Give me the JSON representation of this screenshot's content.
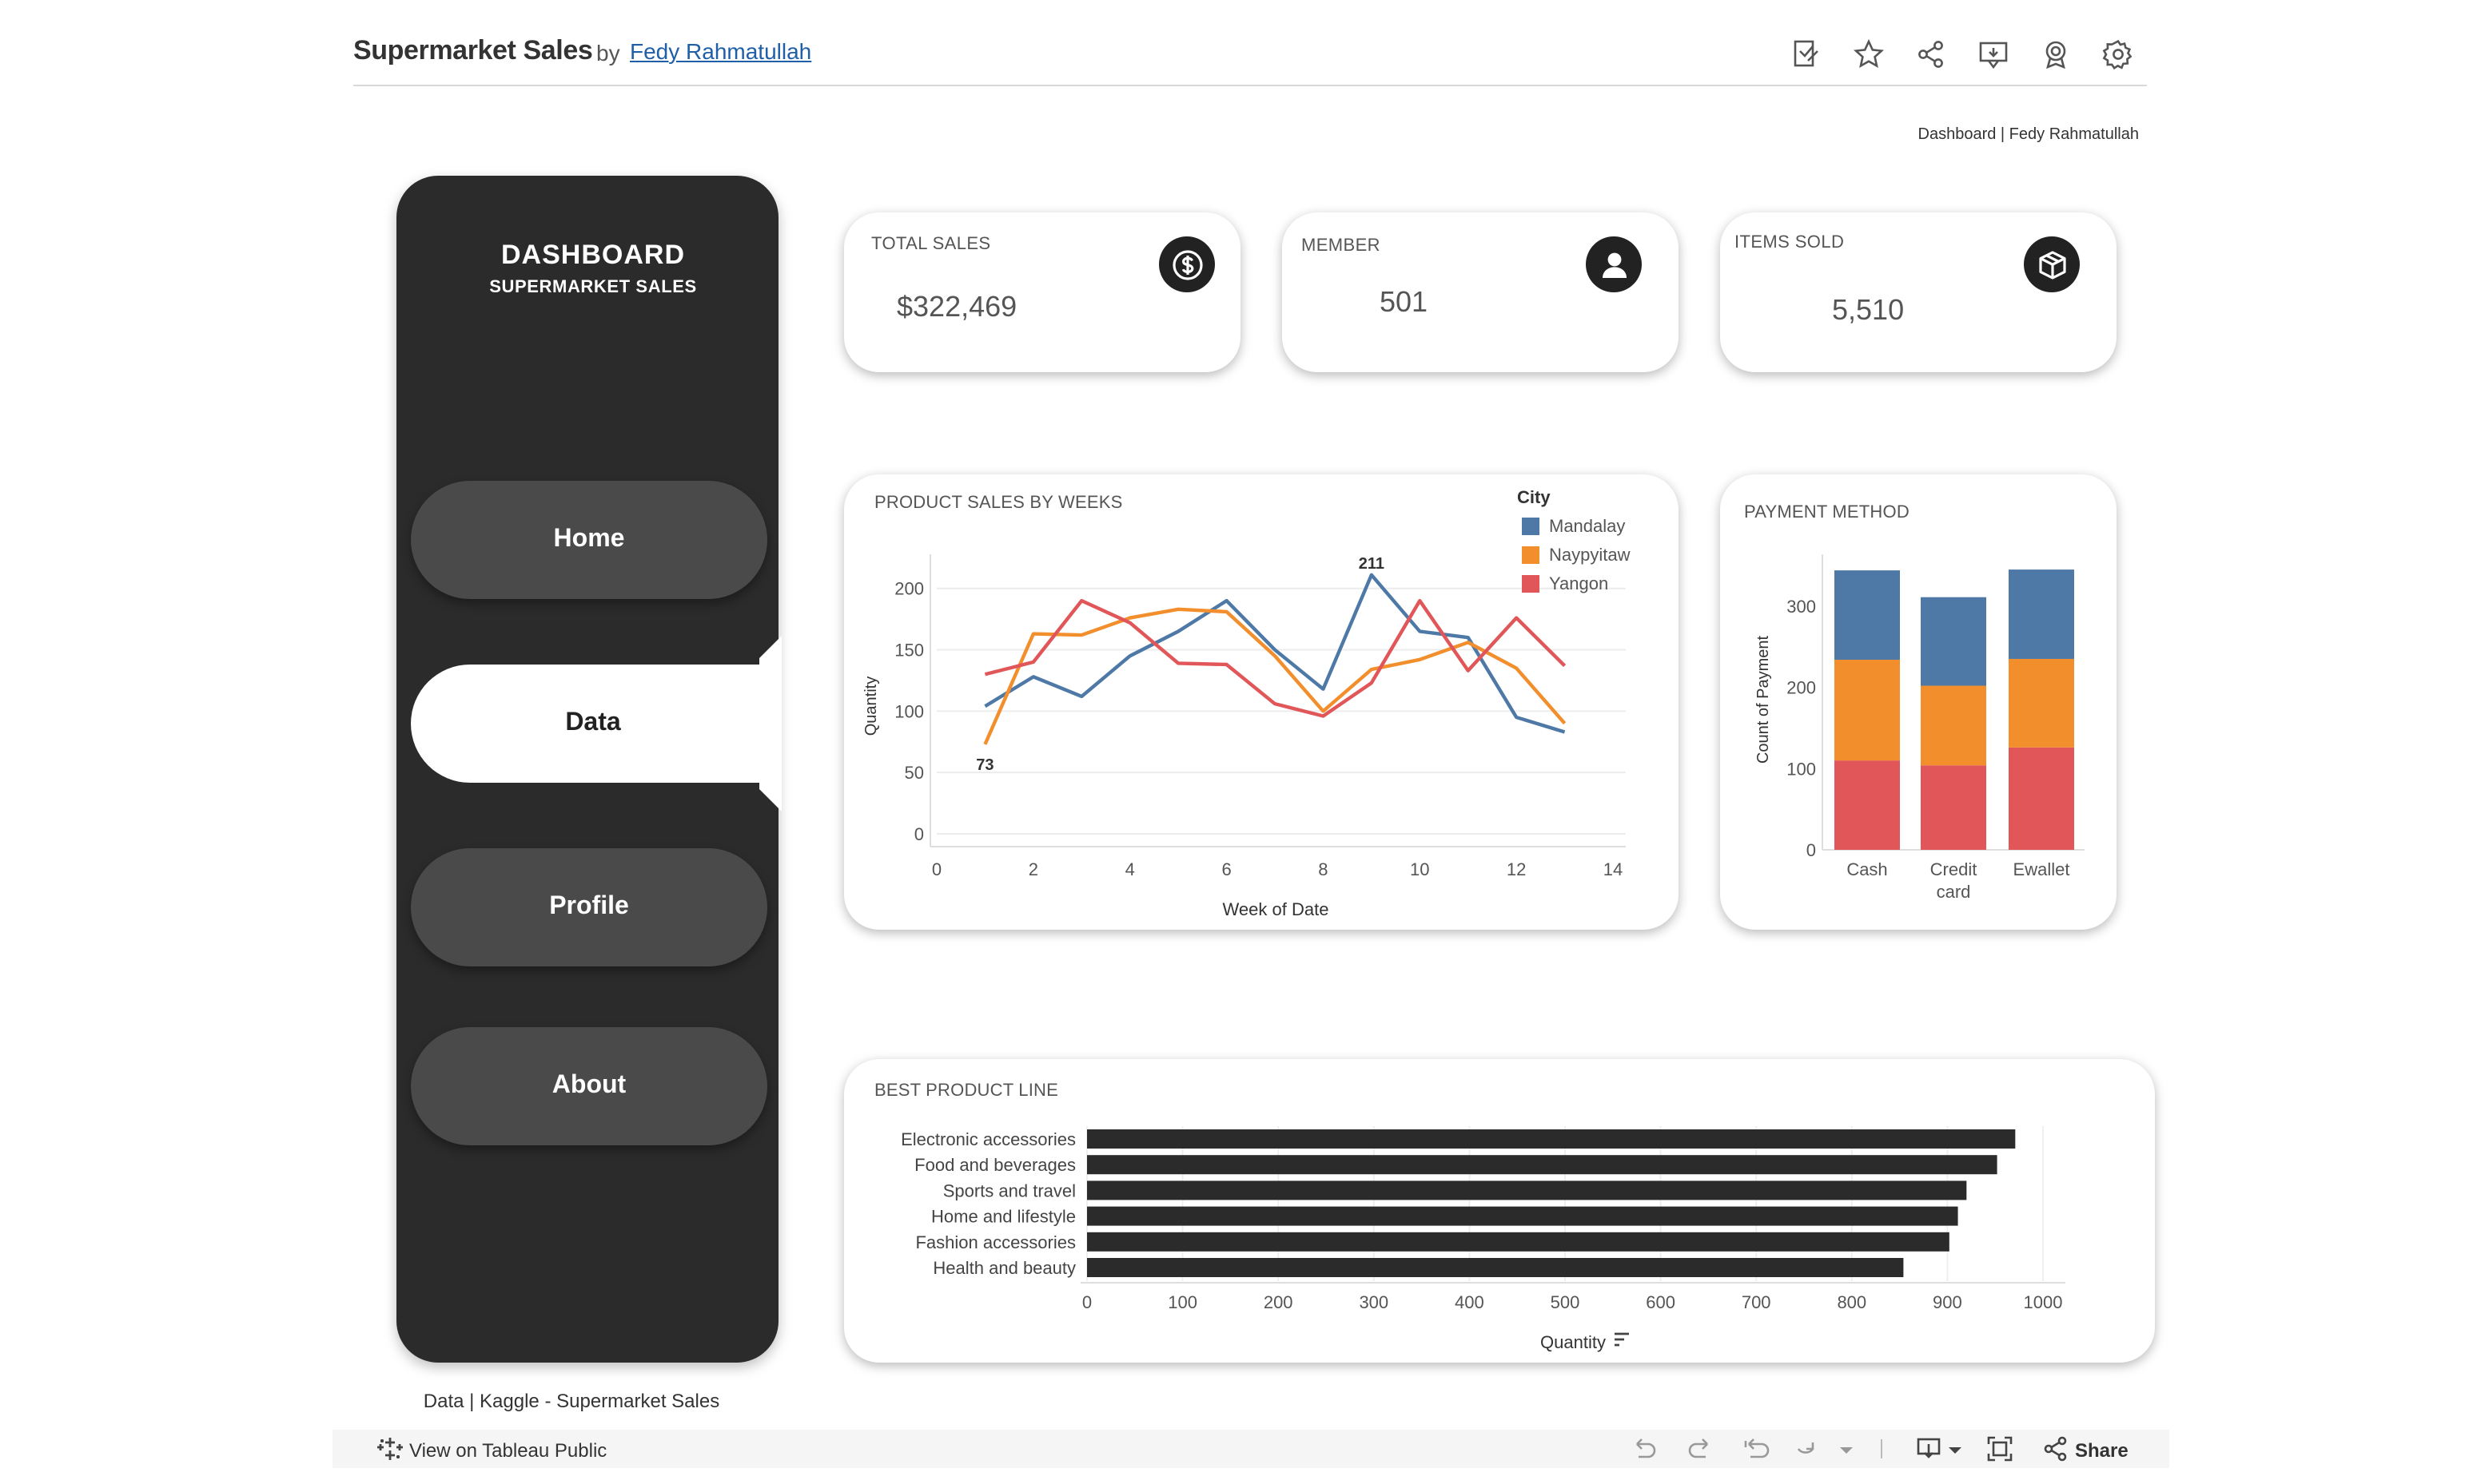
{
  "header": {
    "title": "Supermarket Sales",
    "by": "by",
    "author": "Fedy Rahmatullah"
  },
  "toolbar_icons": [
    "edit-icon",
    "star-icon",
    "share-icon",
    "comment-icon",
    "award-icon",
    "settings-icon"
  ],
  "credit": "Dashboard | Fedy Rahmatullah",
  "sidebar": {
    "title": "DASHBOARD",
    "subtitle": "SUPERMARKET SALES",
    "items": [
      {
        "label": "Home",
        "active": false
      },
      {
        "label": "Data",
        "active": true
      },
      {
        "label": "Profile",
        "active": false
      },
      {
        "label": "About",
        "active": false
      }
    ],
    "source": "Data | Kaggle - Supermarket Sales"
  },
  "kpis": [
    {
      "label": "TOTAL SALES",
      "value": "$322,469",
      "icon": "dollar-icon"
    },
    {
      "label": "MEMBER",
      "value": "501",
      "icon": "user-icon"
    },
    {
      "label": "ITEMS SOLD",
      "value": "5,510",
      "icon": "box-icon"
    }
  ],
  "colors": {
    "sidebar": "#2b2b2b",
    "pill": "#4a4a4a",
    "bar": "#2b2b2b",
    "mandalay": "#4e79a7",
    "naypyitaw": "#f28e2b",
    "yangon": "#e15759"
  },
  "chart_data": [
    {
      "type": "line",
      "title": "PRODUCT SALES BY WEEKS",
      "xlabel": "Week of Date",
      "ylabel": "Quantity",
      "xlim": [
        0,
        14
      ],
      "ylim": [
        0,
        220
      ],
      "xticks": [
        0,
        2,
        4,
        6,
        8,
        10,
        12,
        14
      ],
      "yticks": [
        0,
        50,
        100,
        150,
        200
      ],
      "legend_title": "City",
      "legend_position": "top-right",
      "grid": true,
      "x": [
        1,
        2,
        3,
        4,
        5,
        6,
        7,
        8,
        9,
        10,
        11,
        12,
        13
      ],
      "series": [
        {
          "name": "Mandalay",
          "color": "#4e79a7",
          "values": [
            104,
            128,
            112,
            145,
            165,
            190,
            150,
            118,
            211,
            165,
            160,
            95,
            83
          ]
        },
        {
          "name": "Naypyitaw",
          "color": "#f28e2b",
          "values": [
            73,
            163,
            162,
            176,
            183,
            181,
            145,
            100,
            134,
            142,
            156,
            135,
            90
          ]
        },
        {
          "name": "Yangon",
          "color": "#e15759",
          "values": [
            130,
            140,
            190,
            172,
            139,
            138,
            106,
            96,
            123,
            190,
            133,
            176,
            137
          ]
        }
      ],
      "annotations": [
        {
          "label": "211",
          "x": 9,
          "y": 211
        },
        {
          "label": "73",
          "x": 1,
          "y": 73
        }
      ]
    },
    {
      "type": "bar",
      "stacked": true,
      "title": "PAYMENT METHOD",
      "ylabel": "Count of Payment",
      "xlabel": "",
      "categories": [
        "Cash",
        "Credit card",
        "Ewallet"
      ],
      "category_lines": [
        [
          "Cash"
        ],
        [
          "Credit",
          "card"
        ],
        [
          "Ewallet"
        ]
      ],
      "ylim": [
        0,
        350
      ],
      "yticks": [
        0,
        100,
        200,
        300
      ],
      "series": [
        {
          "name": "Yangon",
          "color": "#e15759",
          "values": [
            110,
            104,
            126
          ]
        },
        {
          "name": "Naypyitaw",
          "color": "#f28e2b",
          "values": [
            124,
            98,
            109
          ]
        },
        {
          "name": "Mandalay",
          "color": "#4e79a7",
          "values": [
            110,
            109,
            110
          ]
        }
      ]
    },
    {
      "type": "bar",
      "orientation": "horizontal",
      "title": "BEST PRODUCT LINE",
      "xlabel": "Quantity",
      "ylabel": "",
      "categories": [
        "Electronic accessories",
        "Food and beverages",
        "Sports and travel",
        "Home and lifestyle",
        "Fashion accessories",
        "Health and beauty"
      ],
      "values": [
        971,
        952,
        920,
        911,
        902,
        854
      ],
      "xlim": [
        0,
        1000
      ],
      "xticks": [
        0,
        100,
        200,
        300,
        400,
        500,
        600,
        700,
        800,
        900
      ],
      "xtick_last_label": "1000",
      "color": "#2b2b2b"
    }
  ],
  "footer": {
    "view_link": "View on Tableau Public",
    "share": "Share"
  }
}
